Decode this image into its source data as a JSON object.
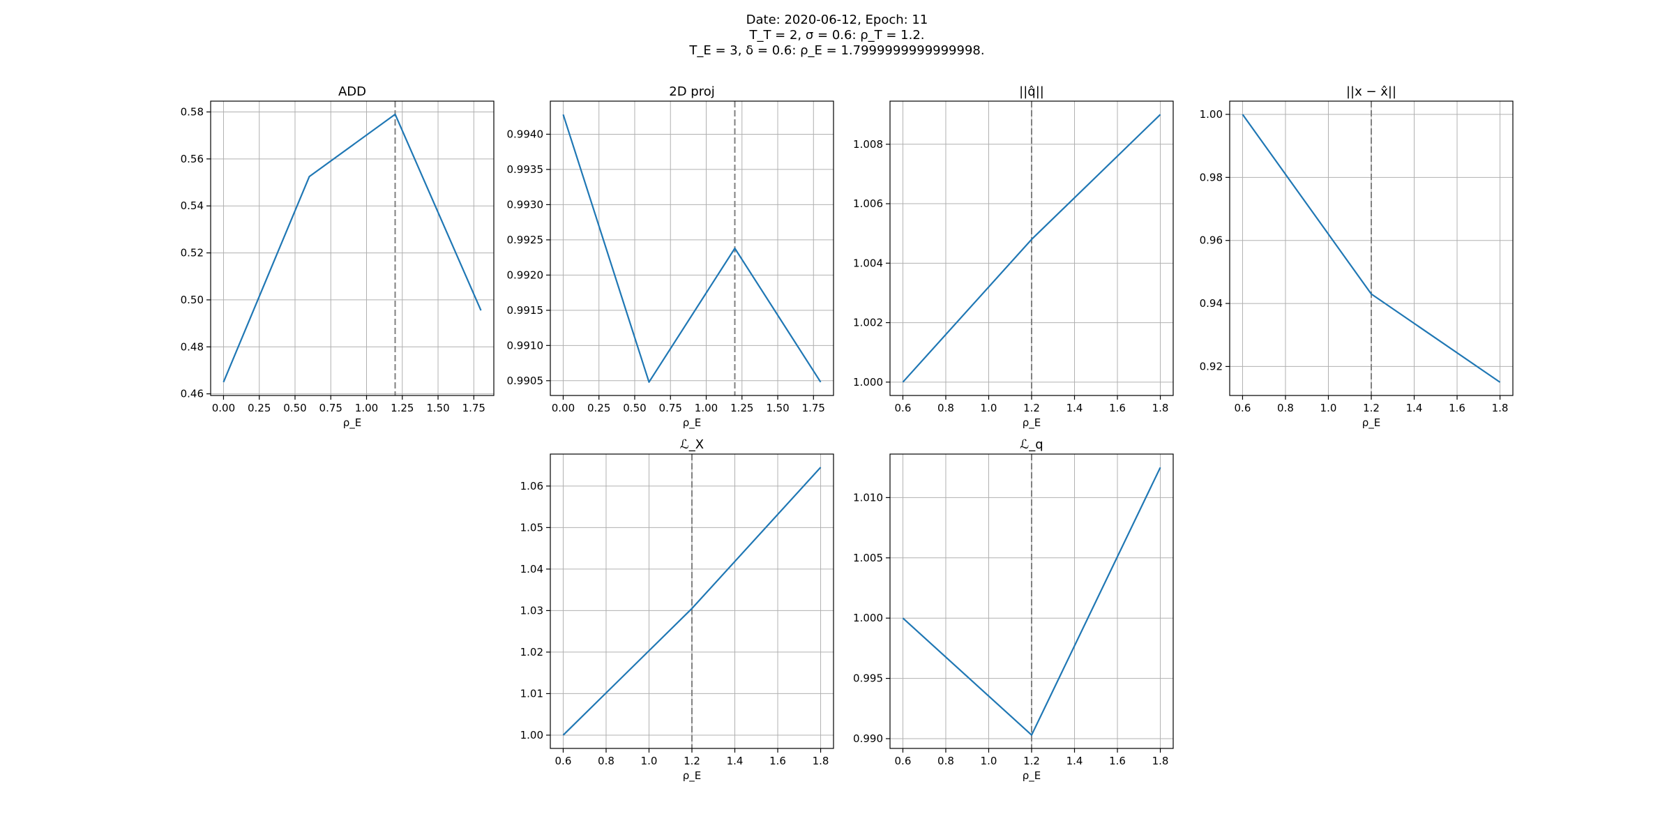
{
  "suptitle": {
    "line1": "Date: 2020-06-12, Epoch: 11",
    "line2": "T_T = 2, σ = 0.6: ρ_T = 1.2.",
    "line3": "T_E = 3, δ = 0.6: ρ_E = 1.7999999999999998."
  },
  "chart_data": [
    {
      "type": "line",
      "title": "ADD",
      "xlabel": "ρ_E",
      "x": [
        0.0,
        0.6,
        1.2,
        1.8
      ],
      "series": [
        {
          "values": [
            0.465,
            0.5525,
            0.579,
            0.4955
          ]
        }
      ],
      "xlim": [
        -0.09,
        1.89
      ],
      "ylim": [
        0.4593,
        0.5846
      ],
      "xticks": [
        0.0,
        0.25,
        0.5,
        0.75,
        1.0,
        1.25,
        1.5,
        1.75
      ],
      "xtick_labels": [
        "0.00",
        "0.25",
        "0.50",
        "0.75",
        "1.00",
        "1.25",
        "1.50",
        "1.75"
      ],
      "yticks": [
        0.46,
        0.48,
        0.5,
        0.52,
        0.54,
        0.56,
        0.58
      ],
      "ytick_labels": [
        "0.46",
        "0.48",
        "0.50",
        "0.52",
        "0.54",
        "0.56",
        "0.58"
      ],
      "vline": 1.2,
      "grid": true,
      "color": "#1f77b4"
    },
    {
      "type": "line",
      "title": "2D proj",
      "xlabel": "ρ_E",
      "x": [
        0.0,
        0.6,
        1.2,
        1.8
      ],
      "series": [
        {
          "values": [
            0.99428,
            0.99048,
            0.99238,
            0.99048
          ]
        }
      ],
      "xlim": [
        -0.09,
        1.89
      ],
      "ylim": [
        0.99029,
        0.99447
      ],
      "xticks": [
        0.0,
        0.25,
        0.5,
        0.75,
        1.0,
        1.25,
        1.5,
        1.75
      ],
      "xtick_labels": [
        "0.00",
        "0.25",
        "0.50",
        "0.75",
        "1.00",
        "1.25",
        "1.50",
        "1.75"
      ],
      "yticks": [
        0.9905,
        0.991,
        0.9915,
        0.992,
        0.9925,
        0.993,
        0.9935,
        0.994
      ],
      "ytick_labels": [
        "0.9905",
        "0.9910",
        "0.9915",
        "0.9920",
        "0.9925",
        "0.9930",
        "0.9935",
        "0.9940"
      ],
      "vline": 1.2,
      "grid": true,
      "color": "#1f77b4"
    },
    {
      "type": "line",
      "title": "||q̂||",
      "xlabel": "ρ_E",
      "x": [
        0.6,
        1.2,
        1.8
      ],
      "series": [
        {
          "values": [
            1.0,
            1.0048,
            1.009
          ]
        }
      ],
      "xlim": [
        0.54,
        1.86
      ],
      "ylim": [
        0.99955,
        1.00945
      ],
      "xticks": [
        0.6,
        0.8,
        1.0,
        1.2,
        1.4,
        1.6,
        1.8
      ],
      "xtick_labels": [
        "0.6",
        "0.8",
        "1.0",
        "1.2",
        "1.4",
        "1.6",
        "1.8"
      ],
      "yticks": [
        1.0,
        1.002,
        1.004,
        1.006,
        1.008
      ],
      "ytick_labels": [
        "1.000",
        "1.002",
        "1.004",
        "1.006",
        "1.008"
      ],
      "vline": 1.2,
      "grid": true,
      "color": "#1f77b4"
    },
    {
      "type": "line",
      "title": "||x − x̂||",
      "xlabel": "ρ_E",
      "x": [
        0.6,
        1.2,
        1.8
      ],
      "series": [
        {
          "values": [
            1.0,
            0.943,
            0.915
          ]
        }
      ],
      "xlim": [
        0.54,
        1.86
      ],
      "ylim": [
        0.9108,
        1.0042
      ],
      "xticks": [
        0.6,
        0.8,
        1.0,
        1.2,
        1.4,
        1.6,
        1.8
      ],
      "xtick_labels": [
        "0.6",
        "0.8",
        "1.0",
        "1.2",
        "1.4",
        "1.6",
        "1.8"
      ],
      "yticks": [
        0.92,
        0.94,
        0.96,
        0.98,
        1.0
      ],
      "ytick_labels": [
        "0.92",
        "0.94",
        "0.96",
        "0.98",
        "1.00"
      ],
      "vline": 1.2,
      "grid": true,
      "color": "#1f77b4"
    },
    {
      "type": "line",
      "title": "ℒ_X",
      "xlabel": "ρ_E",
      "x": [
        0.6,
        1.2,
        1.8
      ],
      "series": [
        {
          "values": [
            1.0,
            1.0305,
            1.0645
          ]
        }
      ],
      "xlim": [
        0.54,
        1.86
      ],
      "ylim": [
        0.9968,
        1.0677
      ],
      "xticks": [
        0.6,
        0.8,
        1.0,
        1.2,
        1.4,
        1.6,
        1.8
      ],
      "xtick_labels": [
        "0.6",
        "0.8",
        "1.0",
        "1.2",
        "1.4",
        "1.6",
        "1.8"
      ],
      "yticks": [
        1.0,
        1.01,
        1.02,
        1.03,
        1.04,
        1.05,
        1.06
      ],
      "ytick_labels": [
        "1.00",
        "1.01",
        "1.02",
        "1.03",
        "1.04",
        "1.05",
        "1.06"
      ],
      "vline": 1.2,
      "grid": true,
      "color": "#1f77b4"
    },
    {
      "type": "line",
      "title": "ℒ_q",
      "xlabel": "ρ_E",
      "x": [
        0.6,
        1.2,
        1.8
      ],
      "series": [
        {
          "values": [
            1.0,
            0.9903,
            1.0125
          ]
        }
      ],
      "xlim": [
        0.54,
        1.86
      ],
      "ylim": [
        0.98919,
        1.01361
      ],
      "xticks": [
        0.6,
        0.8,
        1.0,
        1.2,
        1.4,
        1.6,
        1.8
      ],
      "xtick_labels": [
        "0.6",
        "0.8",
        "1.0",
        "1.2",
        "1.4",
        "1.6",
        "1.8"
      ],
      "yticks": [
        0.99,
        0.995,
        1.0,
        1.005,
        1.01
      ],
      "ytick_labels": [
        "0.990",
        "0.995",
        "1.000",
        "1.005",
        "1.010"
      ],
      "vline": 1.2,
      "grid": true,
      "color": "#1f77b4"
    }
  ]
}
